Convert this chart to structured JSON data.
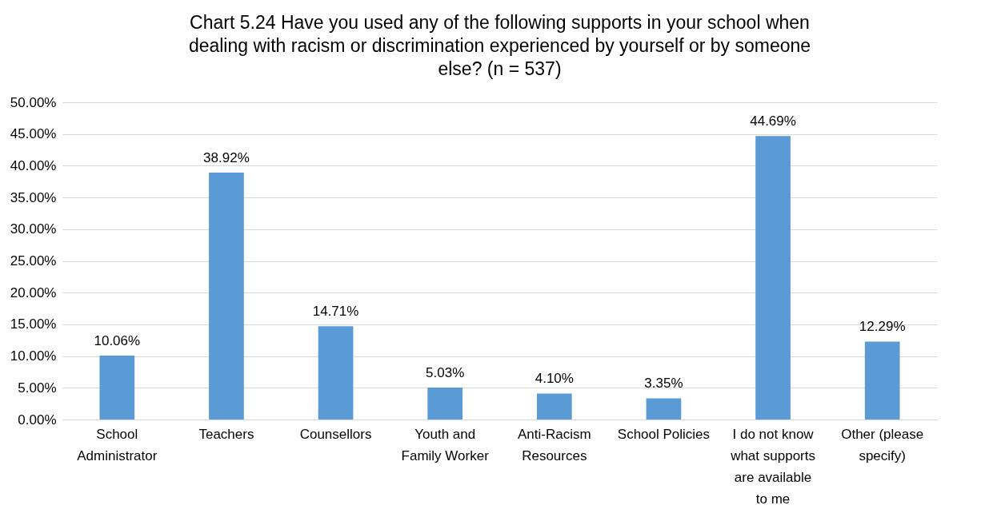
{
  "chart_data": {
    "type": "bar",
    "title": "Chart 5.24 Have you used any of the following supports in your school when dealing with racism or discrimination experienced by yourself or by someone else? (n = 537)",
    "categories": [
      "School Administrator",
      "Teachers",
      "Counsellors",
      "Youth and Family Worker",
      "Anti-Racism Resources",
      "School Policies",
      "I do not know what supports are available to me",
      "Other (please specify)"
    ],
    "values": [
      10.06,
      38.92,
      14.71,
      5.03,
      4.1,
      3.35,
      44.69,
      12.29
    ],
    "value_labels": [
      "10.06%",
      "38.92%",
      "14.71%",
      "5.03%",
      "4.10%",
      "3.35%",
      "44.69%",
      "12.29%"
    ],
    "color": "#5b9bd5",
    "ylim": [
      0,
      50
    ],
    "yticks": [
      {
        "value": 0,
        "label": "0.00%"
      },
      {
        "value": 5,
        "label": "5.00%"
      },
      {
        "value": 10,
        "label": "10.00%"
      },
      {
        "value": 15,
        "label": "15.00%"
      },
      {
        "value": 20,
        "label": "20.00%"
      },
      {
        "value": 25,
        "label": "25.00%"
      },
      {
        "value": 30,
        "label": "30.00%"
      },
      {
        "value": 35,
        "label": "35.00%"
      },
      {
        "value": 40,
        "label": "40.00%"
      },
      {
        "value": 45,
        "label": "45.00%"
      },
      {
        "value": 50,
        "label": "50.00%"
      }
    ],
    "grid": "y"
  }
}
